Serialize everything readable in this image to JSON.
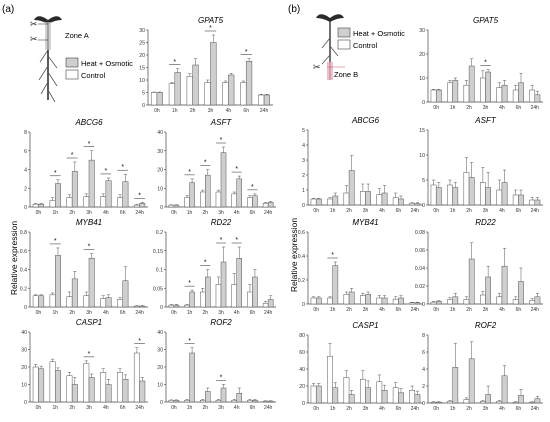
{
  "colors": {
    "control": "#ffffff",
    "treatment": "#cfcfcf",
    "stroke": "#555555",
    "axis": "#444444",
    "zone_b_cut": "#d04a63"
  },
  "panels": [
    {
      "label": "(a)",
      "zone": "Zone A",
      "legend": {
        "treatment": "Heat + Osmotic",
        "control": "Control"
      }
    },
    {
      "label": "(b)",
      "zone": "Zone B",
      "legend": {
        "treatment": "Heat + Osmotic",
        "control": "Control"
      }
    }
  ],
  "shared": {
    "ylabel": "Relative expression",
    "time_points": [
      "0h",
      "1h",
      "2h",
      "3h",
      "4h",
      "6h",
      "24h"
    ]
  },
  "chart_data": [
    {
      "type": "bar",
      "panel": "a",
      "title": "GPAT5",
      "categories": [
        "0h",
        "1h",
        "2h",
        "3h",
        "4h",
        "6h",
        "24h"
      ],
      "ylim": [
        0,
        30
      ],
      "yticks": [
        0,
        5,
        10,
        15,
        20,
        25,
        30
      ],
      "series": [
        {
          "name": "Control",
          "values": [
            5.0,
            8.5,
            11.5,
            9.0,
            9.0,
            9.0,
            4.0
          ]
        },
        {
          "name": "Heat + Osmotic",
          "values": [
            5.0,
            13.0,
            16.0,
            25.0,
            12.0,
            17.5,
            4.0
          ]
        }
      ],
      "errors": [
        [
          0.2,
          0.5,
          1.0,
          1.0,
          0.6,
          0.6,
          0.3
        ],
        [
          0.2,
          1.5,
          2.5,
          3.0,
          0.6,
          1.0,
          0.3
        ]
      ],
      "significance": [
        "1h",
        "3h",
        "6h"
      ]
    },
    {
      "type": "bar",
      "panel": "a",
      "title": "ABCG6",
      "categories": [
        "0h",
        "1h",
        "2h",
        "3h",
        "4h",
        "6h",
        "24h"
      ],
      "ylim": [
        0,
        8
      ],
      "yticks": [
        0,
        2,
        4,
        6,
        8
      ],
      "series": [
        {
          "name": "Control",
          "values": [
            0.3,
            0.7,
            1.0,
            1.1,
            1.1,
            1.0,
            0.2
          ]
        },
        {
          "name": "Heat + Osmotic",
          "values": [
            0.3,
            2.5,
            3.8,
            5.0,
            2.8,
            2.7,
            0.4
          ]
        }
      ],
      "errors": [
        [
          0.1,
          0.3,
          0.3,
          0.3,
          0.3,
          0.3,
          0.1
        ],
        [
          0.1,
          0.4,
          1.0,
          1.0,
          0.3,
          0.8,
          0.1
        ]
      ],
      "significance": [
        "1h",
        "2h",
        "3h",
        "4h",
        "6h",
        "24h"
      ]
    },
    {
      "type": "bar",
      "panel": "a",
      "title": "ASFT",
      "categories": [
        "0h",
        "1h",
        "2h",
        "3h",
        "4h",
        "6h",
        "24h"
      ],
      "ylim": [
        0,
        40
      ],
      "yticks": [
        0,
        10,
        20,
        30,
        40
      ],
      "series": [
        {
          "name": "Control",
          "values": [
            1.0,
            5.0,
            8.0,
            8.0,
            7.0,
            5.0,
            2.0
          ]
        },
        {
          "name": "Heat + Osmotic",
          "values": [
            1.0,
            13.0,
            17.0,
            29.0,
            15.0,
            6.0,
            2.5
          ]
        }
      ],
      "errors": [
        [
          0.2,
          1.0,
          1.0,
          1.0,
          1.0,
          1.0,
          0.5
        ],
        [
          0.2,
          2.0,
          3.0,
          3.0,
          1.5,
          1.0,
          0.5
        ]
      ],
      "significance": [
        "1h",
        "2h",
        "3h",
        "4h",
        "6h"
      ]
    },
    {
      "type": "bar",
      "panel": "a",
      "title": "MYB41",
      "categories": [
        "0h",
        "1h",
        "2h",
        "3h",
        "4h",
        "6h",
        "24h"
      ],
      "ylim": [
        0,
        0.8
      ],
      "yticks": [
        0,
        0.2,
        0.4,
        0.6,
        0.8
      ],
      "series": [
        {
          "name": "Control",
          "values": [
            0.12,
            0.13,
            0.11,
            0.12,
            0.09,
            0.08,
            0.01
          ]
        },
        {
          "name": "Heat + Osmotic",
          "values": [
            0.12,
            0.55,
            0.3,
            0.52,
            0.1,
            0.28,
            0.01
          ]
        }
      ],
      "errors": [
        [
          0.01,
          0.02,
          0.05,
          0.04,
          0.03,
          0.02,
          0.005
        ],
        [
          0.01,
          0.08,
          0.08,
          0.05,
          0.03,
          0.15,
          0.005
        ]
      ],
      "significance": [
        "1h",
        "3h"
      ]
    },
    {
      "type": "bar",
      "panel": "a",
      "title": "RD22",
      "categories": [
        "0h",
        "1h",
        "2h",
        "3h",
        "4h",
        "6h",
        "24h"
      ],
      "ylim": [
        0,
        0.2
      ],
      "yticks": [
        0,
        0.05,
        0.1,
        0.15,
        0.2
      ],
      "series": [
        {
          "name": "Control",
          "values": [
            0.005,
            0.005,
            0.04,
            0.06,
            0.06,
            0.04,
            0.01
          ]
        },
        {
          "name": "Heat + Osmotic",
          "values": [
            0.005,
            0.04,
            0.08,
            0.12,
            0.13,
            0.08,
            0.02
          ]
        }
      ],
      "errors": [
        [
          0.002,
          0.002,
          0.01,
          0.02,
          0.03,
          0.02,
          0.005
        ],
        [
          0.002,
          0.005,
          0.02,
          0.04,
          0.03,
          0.02,
          0.01
        ]
      ],
      "significance": [
        "1h",
        "2h",
        "3h",
        "4h"
      ]
    },
    {
      "type": "bar",
      "panel": "a",
      "title": "CASP1",
      "categories": [
        "0h",
        "1h",
        "2h",
        "3h",
        "4h",
        "6h",
        "24h"
      ],
      "ylim": [
        0,
        40
      ],
      "yticks": [
        0,
        10,
        20,
        30,
        40
      ],
      "series": [
        {
          "name": "Control",
          "values": [
            20.0,
            23.0,
            15.0,
            22.0,
            17.0,
            17.0,
            28.0
          ]
        },
        {
          "name": "Heat + Osmotic",
          "values": [
            19.0,
            18.0,
            10.0,
            14.0,
            10.0,
            13.0,
            12.0
          ]
        }
      ],
      "errors": [
        [
          1.5,
          1.5,
          2.0,
          1.5,
          2.0,
          2.0,
          3.0
        ],
        [
          1.5,
          1.5,
          4.0,
          2.0,
          3.0,
          2.5,
          2.0
        ]
      ],
      "significance": [
        "3h",
        "24h"
      ]
    },
    {
      "type": "bar",
      "panel": "a",
      "title": "ROF2",
      "categories": [
        "0h",
        "1h",
        "2h",
        "3h",
        "4h",
        "6h",
        "24h"
      ],
      "ylim": [
        0,
        40
      ],
      "yticks": [
        0,
        10,
        20,
        30,
        40
      ],
      "series": [
        {
          "name": "Control",
          "values": [
            1.0,
            1.0,
            1.0,
            1.0,
            1.0,
            1.0,
            0.5
          ]
        },
        {
          "name": "Heat + Osmotic",
          "values": [
            1.0,
            28.0,
            6.0,
            8.0,
            5.0,
            1.0,
            0.5
          ]
        }
      ],
      "errors": [
        [
          0.2,
          0.5,
          0.5,
          0.5,
          0.5,
          0.5,
          0.2
        ],
        [
          0.2,
          3.0,
          2.0,
          2.0,
          3.0,
          0.5,
          0.2
        ]
      ],
      "significance": [
        "1h",
        "3h"
      ]
    },
    {
      "type": "bar",
      "panel": "b",
      "title": "GPAT5",
      "categories": [
        "0h",
        "1h",
        "2h",
        "3h",
        "4h",
        "6h",
        "24h"
      ],
      "ylim": [
        0,
        30
      ],
      "yticks": [
        0,
        10,
        20,
        30
      ],
      "series": [
        {
          "name": "Control",
          "values": [
            5.0,
            8.0,
            7.0,
            10.0,
            6.0,
            5.0,
            5.0
          ]
        },
        {
          "name": "Heat + Osmotic",
          "values": [
            5.0,
            9.0,
            15.0,
            12.5,
            7.0,
            8.0,
            3.0
          ]
        }
      ],
      "errors": [
        [
          0.3,
          1.0,
          2.0,
          3.0,
          2.0,
          2.0,
          2.0
        ],
        [
          0.3,
          1.0,
          3.0,
          1.0,
          2.0,
          4.0,
          1.5
        ]
      ],
      "significance": [
        "3h"
      ]
    },
    {
      "type": "bar",
      "panel": "b",
      "title": "ABCG6",
      "categories": [
        "0h",
        "1h",
        "2h",
        "3h",
        "4h",
        "6h",
        "24h"
      ],
      "ylim": [
        0,
        5
      ],
      "yticks": [
        0,
        1,
        2,
        3,
        4,
        5
      ],
      "series": [
        {
          "name": "Control",
          "values": [
            0.4,
            0.4,
            0.8,
            0.9,
            0.7,
            0.5,
            0.1
          ]
        },
        {
          "name": "Heat + Osmotic",
          "values": [
            0.4,
            0.6,
            2.3,
            0.9,
            0.8,
            0.4,
            0.1
          ]
        }
      ],
      "errors": [
        [
          0.05,
          0.1,
          0.5,
          0.5,
          0.4,
          0.3,
          0.05
        ],
        [
          0.05,
          0.2,
          1.0,
          0.5,
          0.5,
          0.2,
          0.05
        ]
      ],
      "significance": []
    },
    {
      "type": "bar",
      "panel": "b",
      "title": "ASFT",
      "categories": [
        "0h",
        "1h",
        "2h",
        "3h",
        "4h",
        "6h",
        "24h"
      ],
      "ylim": [
        0,
        15
      ],
      "yticks": [
        0,
        5,
        10,
        15
      ],
      "series": [
        {
          "name": "Control",
          "values": [
            4.0,
            4.0,
            6.5,
            4.5,
            3.0,
            2.0,
            1.0
          ]
        },
        {
          "name": "Heat + Osmotic",
          "values": [
            3.5,
            3.5,
            5.5,
            3.5,
            4.5,
            2.0,
            1.0
          ]
        }
      ],
      "errors": [
        [
          1.0,
          1.0,
          3.0,
          3.0,
          2.0,
          1.0,
          0.5
        ],
        [
          1.0,
          1.0,
          3.0,
          3.0,
          2.5,
          1.0,
          0.5
        ]
      ],
      "significance": []
    },
    {
      "type": "bar",
      "panel": "b",
      "title": "MYB41",
      "categories": [
        "0h",
        "1h",
        "2h",
        "3h",
        "4h",
        "6h",
        "24h"
      ],
      "ylim": [
        0,
        0.6
      ],
      "yticks": [
        0,
        0.2,
        0.4,
        0.6
      ],
      "series": [
        {
          "name": "Control",
          "values": [
            0.05,
            0.05,
            0.08,
            0.07,
            0.05,
            0.04,
            0.01
          ]
        },
        {
          "name": "Heat + Osmotic",
          "values": [
            0.05,
            0.32,
            0.1,
            0.08,
            0.05,
            0.05,
            0.01
          ]
        }
      ],
      "errors": [
        [
          0.01,
          0.01,
          0.02,
          0.02,
          0.02,
          0.02,
          0.005
        ],
        [
          0.01,
          0.03,
          0.03,
          0.02,
          0.02,
          0.02,
          0.005
        ]
      ],
      "significance": [
        "1h"
      ]
    },
    {
      "type": "bar",
      "panel": "b",
      "title": "RD22",
      "categories": [
        "0h",
        "1h",
        "2h",
        "3h",
        "4h",
        "6h",
        "24h"
      ],
      "ylim": [
        0,
        0.08
      ],
      "yticks": [
        0,
        0.02,
        0.04,
        0.06,
        0.08
      ],
      "series": [
        {
          "name": "Control",
          "values": [
            0.002,
            0.005,
            0.005,
            0.01,
            0.008,
            0.005,
            0.004
          ]
        },
        {
          "name": "Heat + Osmotic",
          "values": [
            0.003,
            0.008,
            0.05,
            0.03,
            0.042,
            0.025,
            0.008
          ]
        }
      ],
      "errors": [
        [
          0.001,
          0.002,
          0.003,
          0.004,
          0.004,
          0.003,
          0.002
        ],
        [
          0.001,
          0.004,
          0.018,
          0.012,
          0.02,
          0.015,
          0.004
        ]
      ],
      "significance": []
    },
    {
      "type": "bar",
      "panel": "b",
      "title": "CASP1",
      "categories": [
        "0h",
        "1h",
        "2h",
        "3h",
        "4h",
        "6h",
        "24h"
      ],
      "ylim": [
        0,
        80
      ],
      "yticks": [
        0,
        20,
        40,
        60,
        80
      ],
      "series": [
        {
          "name": "Control",
          "values": [
            20.0,
            55.0,
            30.0,
            28.0,
            25.0,
            18.0,
            15.0
          ]
        },
        {
          "name": "Heat + Osmotic",
          "values": [
            20.0,
            18.0,
            10.0,
            18.0,
            15.0,
            12.0,
            10.0
          ]
        }
      ],
      "errors": [
        [
          3.0,
          15.0,
          8.0,
          10.0,
          8.0,
          6.0,
          5.0
        ],
        [
          3.0,
          6.0,
          5.0,
          8.0,
          6.0,
          5.0,
          4.0
        ]
      ],
      "significance": []
    },
    {
      "type": "bar",
      "panel": "b",
      "title": "ROF2",
      "categories": [
        "0h",
        "1h",
        "2h",
        "3h",
        "4h",
        "6h",
        "24h"
      ],
      "ylim": [
        0,
        8
      ],
      "yticks": [
        0,
        2,
        4,
        6,
        8
      ],
      "series": [
        {
          "name": "Control",
          "values": [
            0.1,
            0.2,
            0.4,
            0.2,
            0.2,
            0.1,
            0.1
          ]
        },
        {
          "name": "Heat + Osmotic",
          "values": [
            0.1,
            4.2,
            5.2,
            1.0,
            3.2,
            0.9,
            0.5
          ]
        }
      ],
      "errors": [
        [
          0.05,
          0.1,
          0.2,
          0.1,
          0.1,
          0.05,
          0.05
        ],
        [
          0.05,
          2.8,
          2.0,
          1.0,
          1.2,
          0.7,
          0.3
        ]
      ],
      "significance": []
    }
  ]
}
